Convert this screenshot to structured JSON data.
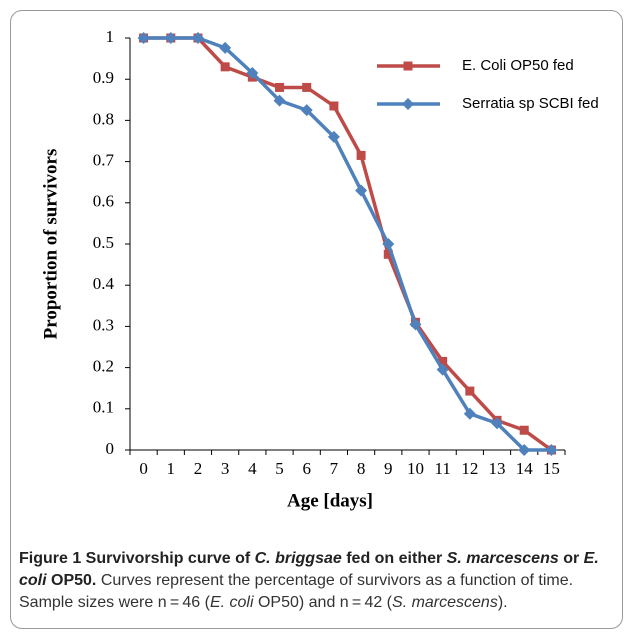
{
  "chart_data": {
    "type": "line",
    "categories": [
      "0",
      "1",
      "2",
      "3",
      "4",
      "5",
      "6",
      "7",
      "8",
      "9",
      "10",
      "11",
      "12",
      "13",
      "14",
      "15"
    ],
    "series": [
      {
        "name": "E. Coli OP50 fed",
        "color": "#be4b48",
        "marker": "square",
        "values": [
          1,
          1,
          1,
          0.93,
          0.905,
          0.88,
          0.88,
          0.835,
          0.715,
          0.475,
          0.31,
          0.215,
          0.143,
          0.072,
          0.048,
          0
        ]
      },
      {
        "name": "Serratia sp SCBI fed",
        "color": "#4f81bd",
        "marker": "diamond",
        "values": [
          1,
          1,
          1,
          0.976,
          0.915,
          0.848,
          0.825,
          0.76,
          0.63,
          0.5,
          0.305,
          0.195,
          0.088,
          0.065,
          0,
          0
        ]
      }
    ],
    "xlabel": "Age [days]",
    "ylabel": "Proportion of survivors",
    "ylim": [
      0,
      1
    ],
    "yticks": [
      0,
      0.1,
      0.2,
      0.3,
      0.4,
      0.5,
      0.6,
      0.7,
      0.8,
      0.9,
      1
    ],
    "grid": false,
    "legend": "top-right"
  },
  "caption": {
    "title": [
      "Figure 1 Survivorship curve of ",
      "C. briggsae",
      " fed on either ",
      "S. marcescens",
      " or ",
      "E. coli",
      " OP50."
    ],
    "text": [
      "Curves represent the percentage of survivors as a function of time. Sample sizes were n = 46 (",
      "E. coli",
      " OP50) and n = 42 (",
      "S. marcescens",
      ")."
    ]
  }
}
